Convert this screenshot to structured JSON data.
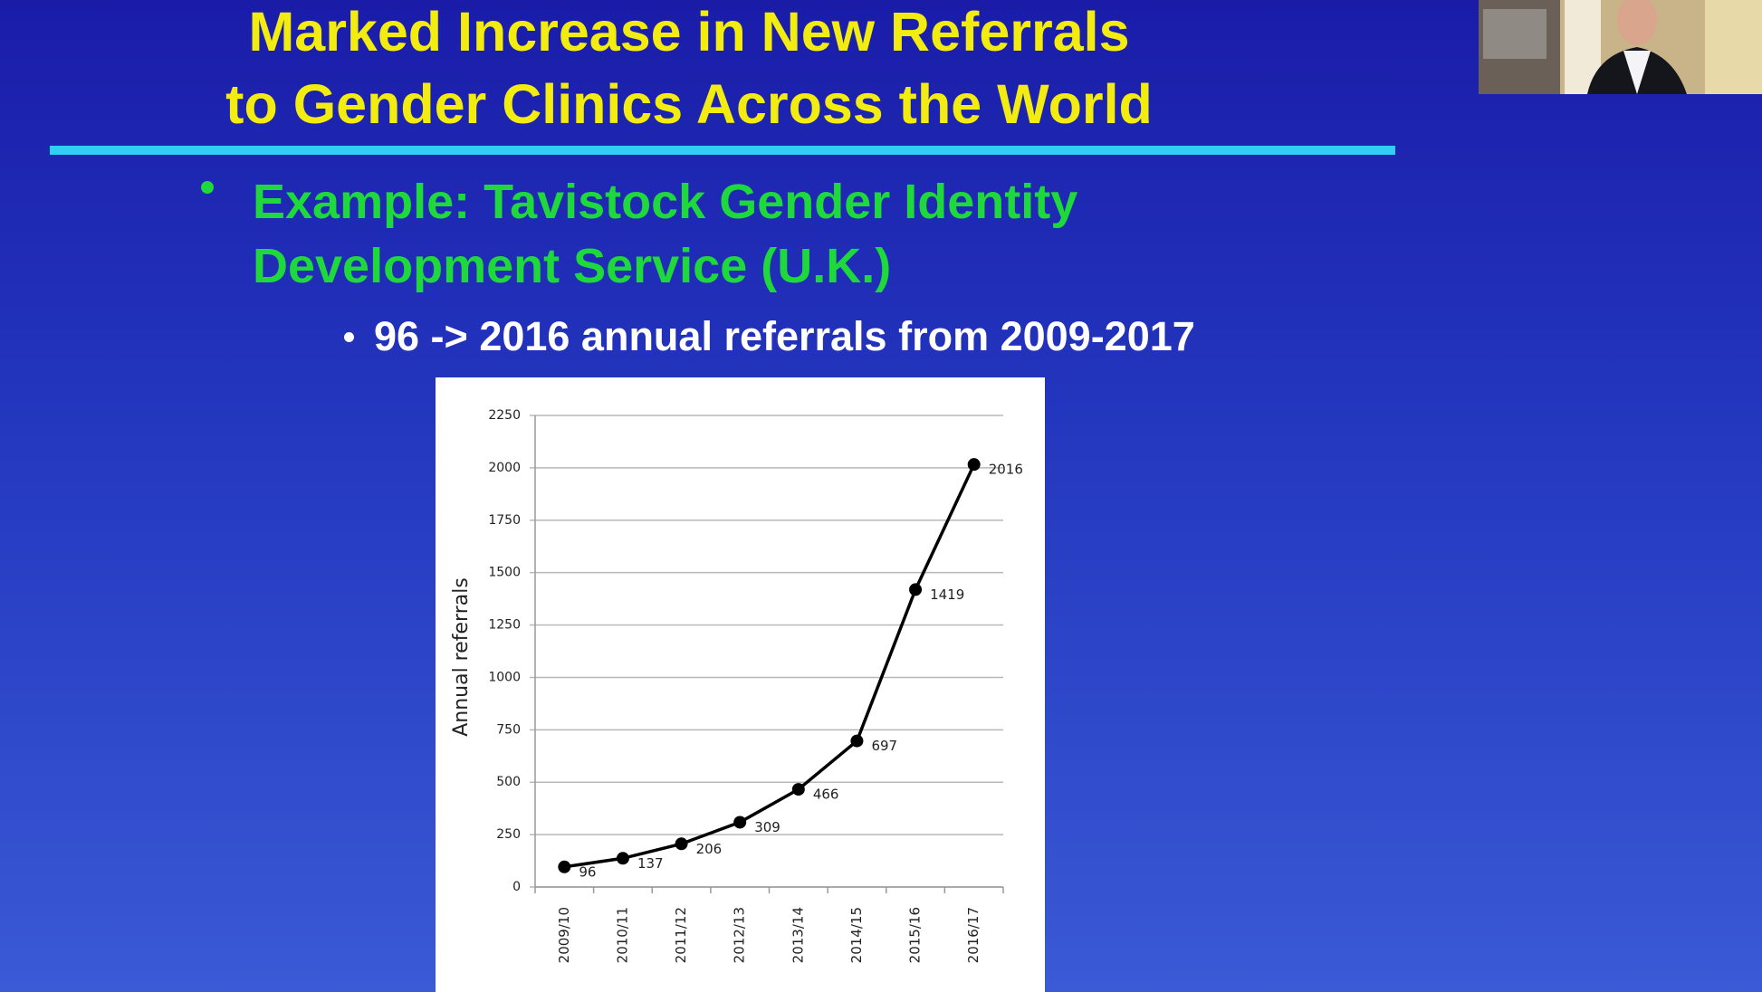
{
  "slide": {
    "title_lines": [
      "Marked Increase in New Referrals",
      "to Gender Clinics Across the World"
    ],
    "bullet_lines": [
      "Example:  Tavistock Gender Identity",
      "Development Service (U.K.)"
    ],
    "sub_bullet": "96 -> 2016 annual referrals from 2009-2017"
  },
  "chart_data": {
    "type": "line",
    "y_label": "Annual referrals",
    "categories": [
      "2009/10",
      "2010/11",
      "2011/12",
      "2012/13",
      "2013/14",
      "2014/15",
      "2015/16",
      "2016/17"
    ],
    "values": [
      96,
      137,
      206,
      309,
      466,
      697,
      1419,
      2016
    ],
    "color": "#000000",
    "ylim": [
      0,
      2250
    ],
    "yticks": [
      0,
      250,
      500,
      750,
      1000,
      1250,
      1500,
      1750,
      2000,
      2250
    ],
    "grid": true
  }
}
